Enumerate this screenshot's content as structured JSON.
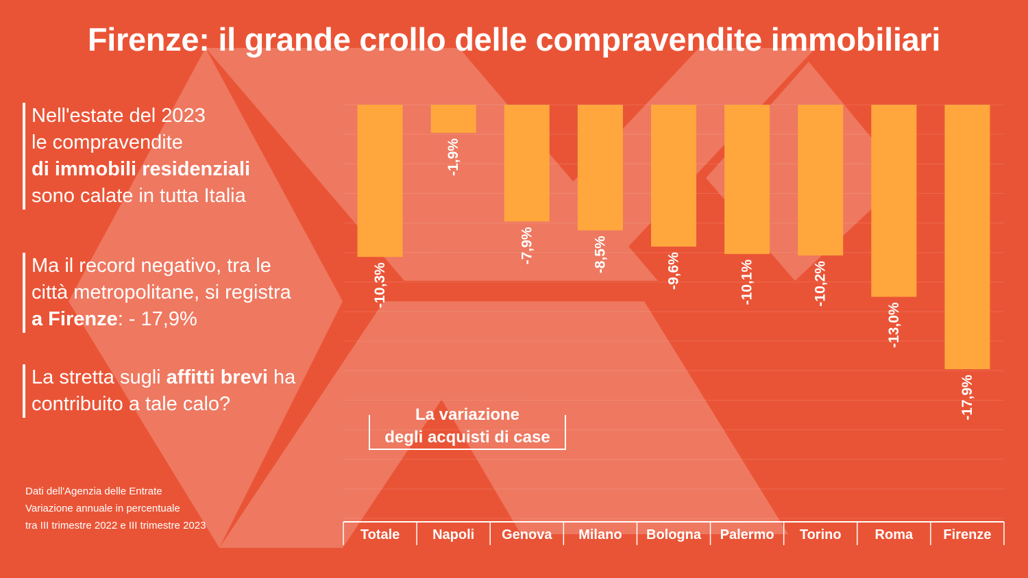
{
  "title": "Firenze: il grande crollo delle compravendite immobiliari",
  "paragraphs": {
    "p1": {
      "a": "Nell'estate del 2023",
      "b": "le compravendite",
      "c": "di immobili residenziali",
      "d": "sono calate in tutta Italia"
    },
    "p2": {
      "a": "Ma il record negativo, tra le",
      "b": "città metropolitane, si registra",
      "c": "a Firenze",
      "d": ": - 17,9%"
    },
    "p3": {
      "a": "La stretta sugli ",
      "b": "affitti brevi",
      "c": " ha",
      "d": "contribuito a tale calo?"
    }
  },
  "source": {
    "line1": "Dati dell'Agenzia delle Entrate",
    "line2": "Variazione annuale in percentuale",
    "line3": "tra III trimestre 2022 e III trimestre 2023"
  },
  "legend": {
    "line1": "La variazione",
    "line2": "degli acquisti di case"
  },
  "colors": {
    "background": "#EA5436",
    "bar": "#FFA73D",
    "text": "#FFFFFF"
  },
  "chart_data": {
    "type": "bar",
    "categories": [
      "Totale",
      "Napoli",
      "Genova",
      "Milano",
      "Bologna",
      "Palermo",
      "Torino",
      "Roma",
      "Firenze"
    ],
    "values": [
      -10.3,
      -1.9,
      -7.9,
      -8.5,
      -9.6,
      -10.1,
      -10.2,
      -13.0,
      -17.9
    ],
    "labels": [
      "-10,3%",
      "-1,9%",
      "-7,9%",
      "-8,5%",
      "-9,6%",
      "-10,1%",
      "-10,2%",
      "-13,0%",
      "-17,9%"
    ],
    "title": "La variazione degli acquisti di case",
    "ylim": [
      -28,
      0
    ],
    "grid": true
  }
}
